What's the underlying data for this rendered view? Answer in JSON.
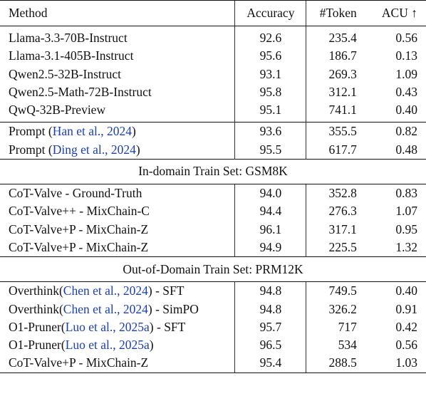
{
  "header": {
    "method": "Method",
    "accuracy": "Accuracy",
    "tokens": "#Token",
    "acu": "ACU ↑"
  },
  "groups": [
    {
      "rows": [
        {
          "method": "Llama-3.3-70B-Instruct",
          "accuracy": "92.6",
          "tokens": "235.4",
          "acu": "0.56"
        },
        {
          "method": "Llama-3.1-405B-Instruct",
          "accuracy": "95.6",
          "tokens": "186.7",
          "acu": "0.13"
        },
        {
          "method": "Qwen2.5-32B-Instruct",
          "accuracy": "93.1",
          "tokens": "269.3",
          "acu": "1.09"
        },
        {
          "method": "Qwen2.5-Math-72B-Instruct",
          "accuracy": "95.8",
          "tokens": "312.1",
          "acu": "0.43"
        },
        {
          "method": "QwQ-32B-Preview",
          "accuracy": "95.1",
          "tokens": "741.1",
          "acu": "0.40"
        }
      ]
    },
    {
      "rows": [
        {
          "method_pre": "Prompt (",
          "cite": "Han et al., 2024",
          "method_post": ")",
          "accuracy": "93.6",
          "tokens": "355.5",
          "acu": "0.82"
        },
        {
          "method_pre": "Prompt (",
          "cite": "Ding et al., 2024",
          "method_post": ")",
          "accuracy": "95.5",
          "tokens": "617.7",
          "acu": "0.48"
        }
      ]
    },
    {
      "title": "In-domain Train Set: GSM8K",
      "rows": [
        {
          "method": "CoT-Valve - Ground-Truth",
          "accuracy": "94.0",
          "tokens": "352.8",
          "acu": "0.83"
        },
        {
          "method": "CoT-Valve++ - MixChain-C",
          "accuracy": "94.4",
          "tokens": "276.3",
          "acu": "1.07"
        },
        {
          "method": "CoT-Valve+P - MixChain-Z",
          "accuracy": "96.1",
          "tokens": "317.1",
          "acu": "0.95"
        },
        {
          "method": "CoT-Valve+P - MixChain-Z",
          "accuracy": "94.9",
          "tokens": "225.5",
          "acu": "1.32"
        }
      ]
    },
    {
      "title": "Out-of-Domain Train Set: PRM12K",
      "rows": [
        {
          "method_pre": "Overthink(",
          "cite": "Chen et al., 2024",
          "method_post": ") - SFT",
          "accuracy": "94.8",
          "tokens": "749.5",
          "acu": "0.40"
        },
        {
          "method_pre": "Overthink(",
          "cite": "Chen et al., 2024",
          "method_post": ") - SimPO",
          "accuracy": "94.8",
          "tokens": "326.2",
          "acu": "0.91"
        },
        {
          "method_pre": "O1-Pruner(",
          "cite": "Luo et al., 2025a",
          "method_post": ") - SFT",
          "accuracy": "95.7",
          "tokens": "717",
          "acu": "0.42"
        },
        {
          "method_pre": "O1-Pruner(",
          "cite": "Luo et al., 2025a",
          "method_post": ")",
          "accuracy": "96.5",
          "tokens": "534",
          "acu": "0.56"
        },
        {
          "method": "CoT-Valve+P - MixChain-Z",
          "accuracy": "95.4",
          "tokens": "288.5",
          "acu": "1.03"
        }
      ]
    }
  ],
  "colors": {
    "citation": "#1a3fb0",
    "text": "#111111"
  }
}
